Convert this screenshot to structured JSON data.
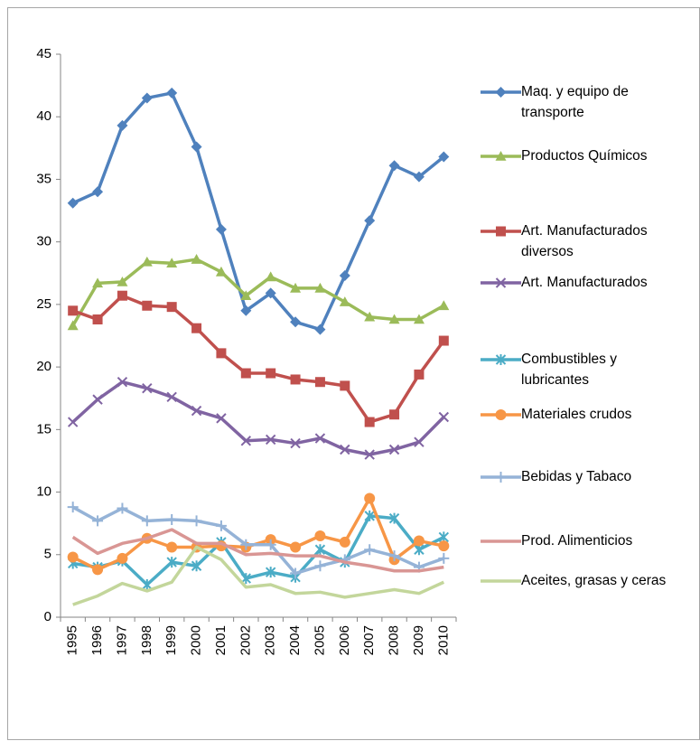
{
  "chart_data": {
    "type": "line",
    "categories": [
      "1995",
      "1996",
      "1997",
      "1998",
      "1999",
      "2000",
      "2001",
      "2002",
      "2003",
      "2004",
      "2005",
      "2006",
      "2007",
      "2008",
      "2009",
      "2010"
    ],
    "ylim": [
      0,
      45
    ],
    "yticks": [
      0,
      5,
      10,
      15,
      20,
      25,
      30,
      35,
      40,
      45
    ],
    "grid": false,
    "legend": "right",
    "series": [
      {
        "name": "Maq. y equipo de transporte",
        "color": "#4f81bd",
        "marker": "diamond",
        "values": [
          33.1,
          34.0,
          39.3,
          41.5,
          41.9,
          37.6,
          31.0,
          24.5,
          25.9,
          23.6,
          23.0,
          27.3,
          31.7,
          36.1,
          35.2,
          36.8
        ]
      },
      {
        "name": "Productos Químicos",
        "color": "#9bbb59",
        "marker": "triangle",
        "values": [
          23.3,
          26.7,
          26.8,
          28.4,
          28.3,
          28.6,
          27.6,
          25.7,
          27.2,
          26.3,
          26.3,
          25.2,
          24.0,
          23.8,
          23.8,
          24.9
        ]
      },
      {
        "name": "Art. Manufacturados diversos",
        "color": "#c0504d",
        "marker": "square",
        "values": [
          24.5,
          23.8,
          25.7,
          24.9,
          24.8,
          23.1,
          21.1,
          19.5,
          19.5,
          19.0,
          18.8,
          18.5,
          15.6,
          16.2,
          19.4,
          22.1
        ]
      },
      {
        "name": "Art. Manufacturados",
        "color": "#8064a2",
        "marker": "x",
        "values": [
          15.6,
          17.4,
          18.8,
          18.3,
          17.6,
          16.5,
          15.9,
          14.1,
          14.2,
          13.9,
          14.3,
          13.4,
          13.0,
          13.4,
          14.0,
          16.0
        ]
      },
      {
        "name": "Combustibles y lubricantes",
        "color": "#4bacc6",
        "marker": "star",
        "values": [
          4.3,
          4.0,
          4.5,
          2.6,
          4.4,
          4.1,
          6.0,
          3.1,
          3.6,
          3.2,
          5.4,
          4.4,
          8.1,
          7.9,
          5.4,
          6.4
        ]
      },
      {
        "name": "Materiales crudos",
        "color": "#f79646",
        "marker": "circle",
        "values": [
          4.8,
          3.8,
          4.7,
          6.3,
          5.6,
          5.6,
          5.7,
          5.6,
          6.2,
          5.6,
          6.5,
          6.0,
          9.5,
          4.6,
          6.1,
          5.7
        ]
      },
      {
        "name": "Bebidas y Tabaco",
        "color": "#95b3d7",
        "marker": "plus",
        "values": [
          8.8,
          7.7,
          8.7,
          7.7,
          7.8,
          7.7,
          7.3,
          5.8,
          5.8,
          3.5,
          4.1,
          4.6,
          5.4,
          4.9,
          4.0,
          4.7
        ]
      },
      {
        "name": "Prod. Alimenticios",
        "color": "#d99694",
        "marker": "none",
        "values": [
          6.4,
          5.1,
          5.9,
          6.3,
          7.0,
          5.9,
          5.9,
          5.0,
          5.1,
          4.9,
          4.9,
          4.4,
          4.1,
          3.7,
          3.7,
          4.0
        ]
      },
      {
        "name": "Aceites, grasas y ceras",
        "color": "#c3d69b",
        "marker": "none",
        "values": [
          1.0,
          1.7,
          2.7,
          2.1,
          2.8,
          5.6,
          4.6,
          2.4,
          2.6,
          1.9,
          2.0,
          1.6,
          1.9,
          2.2,
          1.9,
          2.8
        ]
      }
    ]
  }
}
